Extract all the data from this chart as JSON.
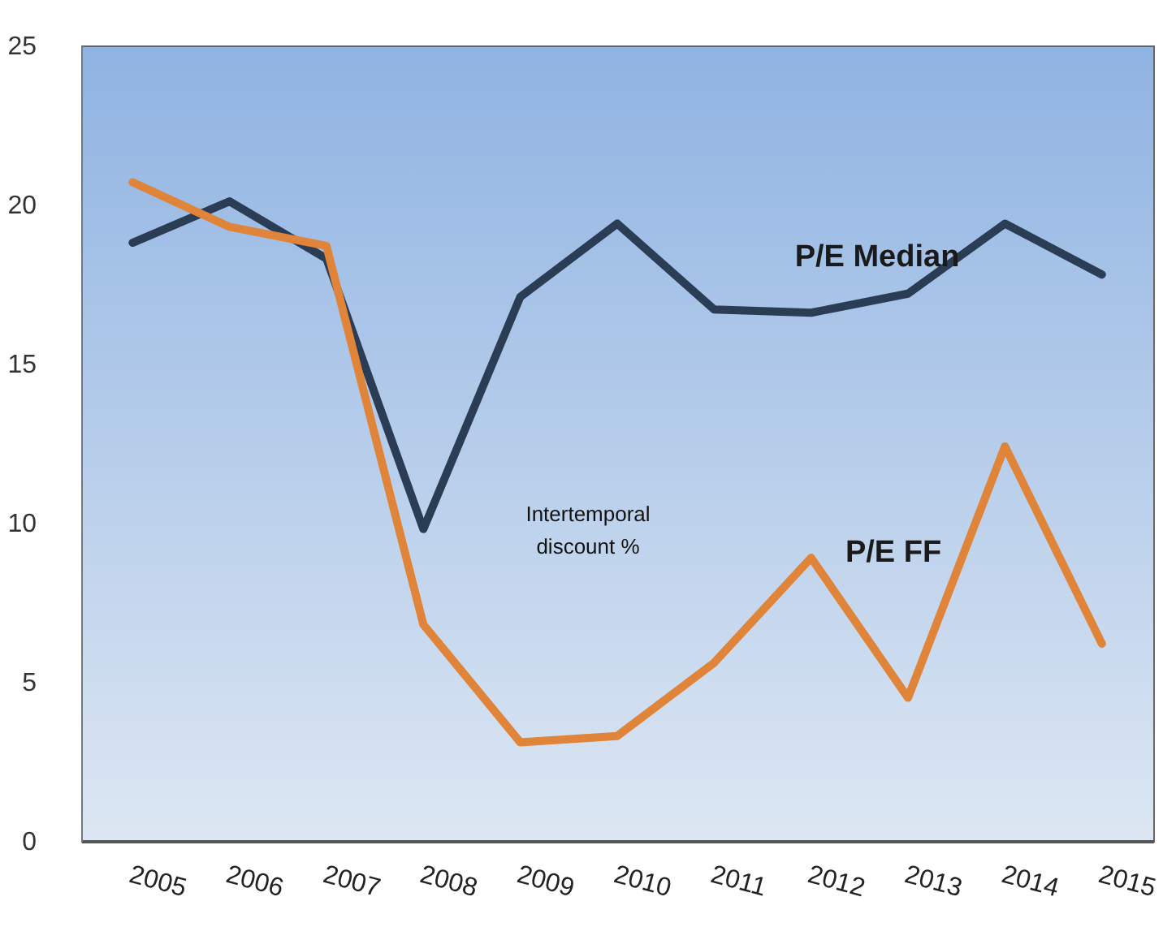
{
  "chart_data": {
    "type": "line",
    "categories": [
      "2005",
      "2006",
      "2007",
      "2008",
      "2009",
      "2010",
      "2011",
      "2012",
      "2013",
      "2014",
      "2015"
    ],
    "series": [
      {
        "name": "P/E Median",
        "color": "#2b3d55",
        "values": [
          18.8,
          20.1,
          18.3,
          9.8,
          17.1,
          19.4,
          16.7,
          16.6,
          17.2,
          19.4,
          17.8
        ]
      },
      {
        "name": "P/E FF",
        "color": "#e0843a",
        "values": [
          20.7,
          19.3,
          18.7,
          6.8,
          3.1,
          3.3,
          5.6,
          8.9,
          4.5,
          12.4,
          6.2
        ]
      }
    ],
    "ylim": [
      0,
      25
    ],
    "yticks": [
      0,
      5,
      10,
      15,
      20,
      25
    ],
    "grid": false,
    "annotations": [
      "Intertemporal discount %"
    ]
  }
}
